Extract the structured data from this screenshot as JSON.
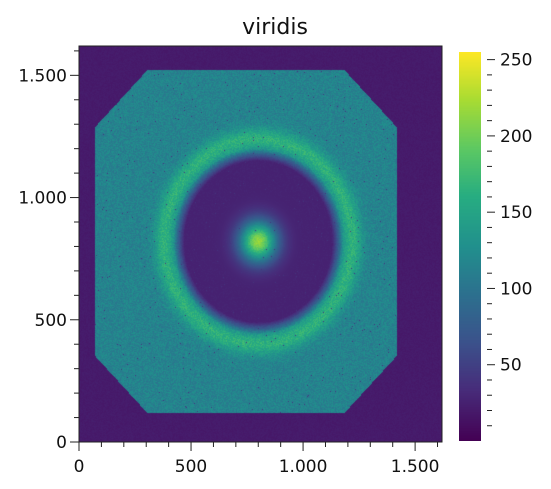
{
  "chart_data": {
    "type": "heatmap",
    "title": "viridis",
    "colormap": "viridis",
    "xlabel": "",
    "ylabel": "",
    "xlim": [
      0,
      1620
    ],
    "ylim": [
      0,
      1620
    ],
    "x_ticks": [
      {
        "value": 0,
        "label": "0"
      },
      {
        "value": 500,
        "label": "500"
      },
      {
        "value": 1000,
        "label": "1.000"
      },
      {
        "value": 1500,
        "label": "1.500"
      }
    ],
    "y_ticks": [
      {
        "value": 0,
        "label": "0"
      },
      {
        "value": 500,
        "label": "500"
      },
      {
        "value": 1000,
        "label": "1.000"
      },
      {
        "value": 1500,
        "label": "1.500"
      }
    ],
    "colorbar": {
      "range": [
        0,
        255
      ],
      "ticks": [
        {
          "value": 50,
          "label": "50"
        },
        {
          "value": 100,
          "label": "100"
        },
        {
          "value": 150,
          "label": "150"
        },
        {
          "value": 200,
          "label": "200"
        },
        {
          "value": 250,
          "label": "250"
        }
      ]
    },
    "field": {
      "background_value": 20,
      "sample_level": 115,
      "ring_peak": 165,
      "inner_disk_level": 25,
      "core_peak": 215,
      "center": [
        800,
        820
      ],
      "ring_radius": 420,
      "inner_disk_radius": 380,
      "core_radius": 60,
      "sample_extent": {
        "x": [
          70,
          1420
        ],
        "y": [
          120,
          1520
        ]
      }
    }
  }
}
